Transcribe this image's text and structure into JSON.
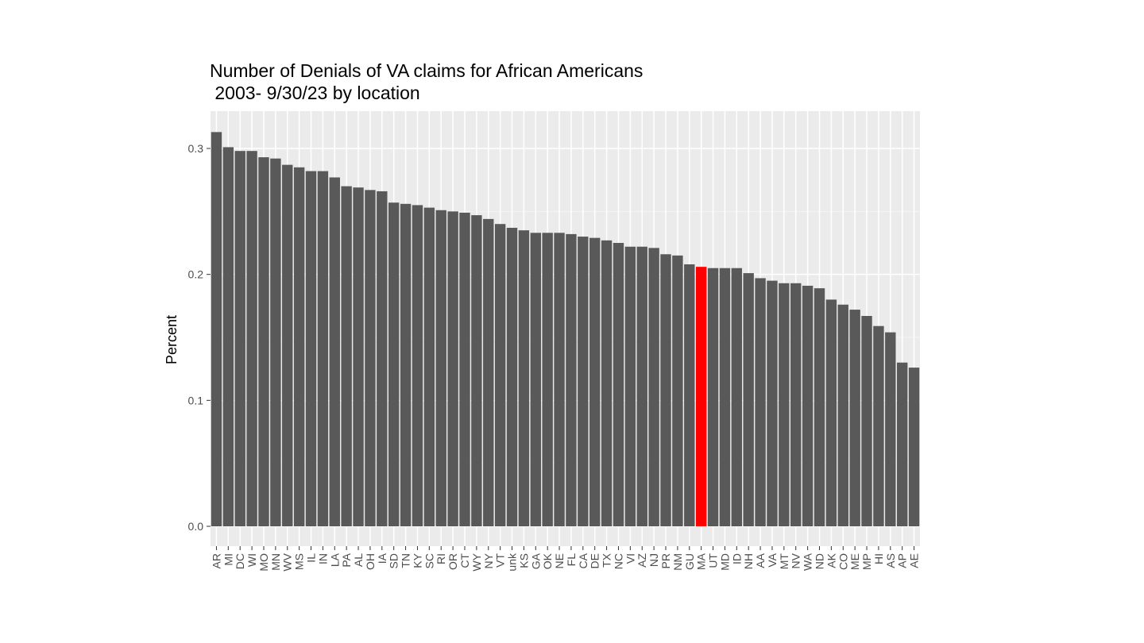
{
  "chart_data": {
    "type": "bar",
    "title": "Number of Denials of VA claims for African Americans",
    "subtitle": " 2003- 9/30/23 by location",
    "xlabel": "",
    "ylabel": "Percent",
    "ylim": [
      0,
      0.328
    ],
    "yticks": [
      0.0,
      0.1,
      0.2,
      0.3
    ],
    "ytick_labels": [
      "0.0",
      "0.1",
      "0.2",
      "0.3"
    ],
    "grid": true,
    "legend": "none",
    "categories": [
      "AR",
      "MI",
      "DC",
      "WI",
      "MO",
      "MN",
      "WV",
      "MS",
      "IL",
      "IN",
      "LA",
      "PA",
      "AL",
      "OH",
      "IA",
      "SD",
      "TN",
      "KY",
      "SC",
      "RI",
      "OR",
      "CT",
      "WY",
      "NY",
      "VT",
      "unk",
      "KS",
      "GA",
      "OK",
      "NE",
      "FL",
      "CA",
      "DE",
      "TX",
      "NC",
      "VI",
      "AZ",
      "NJ",
      "PR",
      "NM",
      "GU",
      "MA",
      "UT",
      "MD",
      "ID",
      "NH",
      "AA",
      "VA",
      "MT",
      "NV",
      "WA",
      "ND",
      "AK",
      "CO",
      "ME",
      "MP",
      "HI",
      "AS",
      "AP",
      "AE"
    ],
    "values": [
      0.313,
      0.301,
      0.298,
      0.298,
      0.293,
      0.292,
      0.287,
      0.285,
      0.282,
      0.282,
      0.277,
      0.27,
      0.269,
      0.267,
      0.266,
      0.257,
      0.256,
      0.255,
      0.253,
      0.251,
      0.25,
      0.249,
      0.247,
      0.244,
      0.24,
      0.237,
      0.235,
      0.233,
      0.233,
      0.233,
      0.232,
      0.23,
      0.229,
      0.227,
      0.225,
      0.222,
      0.222,
      0.221,
      0.216,
      0.215,
      0.208,
      0.206,
      0.205,
      0.205,
      0.205,
      0.201,
      0.197,
      0.195,
      0.193,
      0.193,
      0.191,
      0.189,
      0.18,
      0.176,
      0.172,
      0.167,
      0.159,
      0.154,
      0.13,
      0.126
    ],
    "highlight_category": "MA",
    "colors": {
      "bar": "#595959",
      "highlight": "#ff0000",
      "panel": "#ebebeb",
      "grid_major": "#ffffff",
      "grid_minor": "#f5f5f5",
      "tick": "#333333"
    }
  }
}
